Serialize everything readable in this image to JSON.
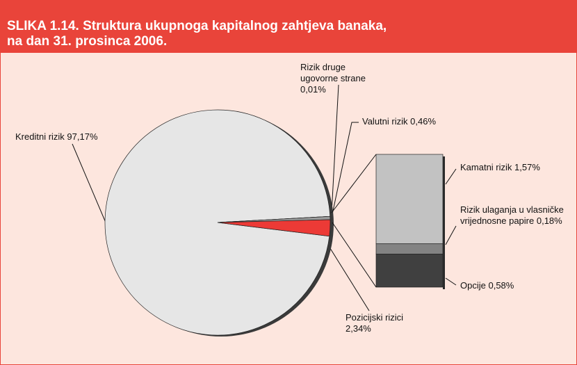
{
  "chart_data": {
    "type": "pie",
    "title": "SLIKA 1.14. Struktura ukupnoga kapitalnog zahtjeva banaka,\nna dan 31. prosinca 2006.",
    "categories": [
      "Kreditni rizik",
      "Rizik druge ugovorne strane",
      "Valutni rizik",
      "Pozicijski rizici"
    ],
    "values": [
      97.17,
      0.01,
      0.46,
      2.34
    ],
    "value_labels": [
      "97,17%",
      "0,01%",
      "0,46%",
      "2,34%"
    ],
    "colors": [
      "#e6e6e6",
      "#bdbdbd",
      "#9a9a9a",
      "#ec3a36"
    ],
    "breakdown": {
      "type": "bar",
      "categories": [
        "Kamatni rizik",
        "Rizik ulaganja u vlasničke vrijednosne papire",
        "Opcije"
      ],
      "values": [
        1.57,
        0.18,
        0.58
      ],
      "value_labels": [
        "1,57%",
        "0,18%",
        "0,58%"
      ],
      "colors": [
        "#c2c2c2",
        "#838383",
        "#404040"
      ]
    }
  }
}
